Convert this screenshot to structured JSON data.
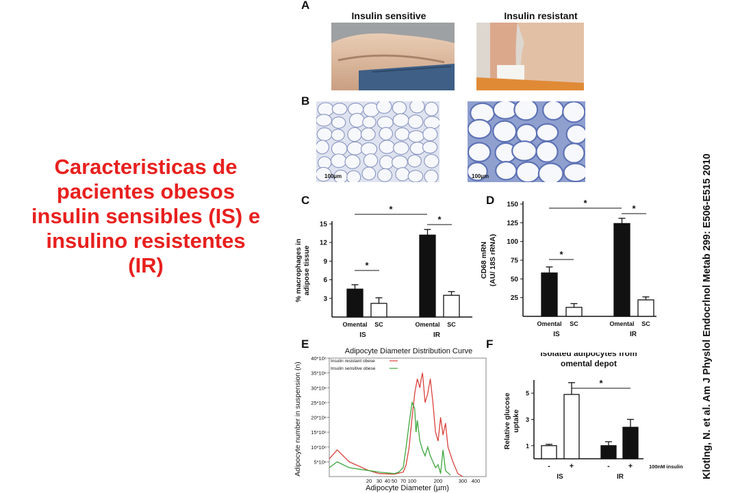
{
  "title_lines": [
    "Caracteristicas de",
    "pacientes obesos",
    "insulin sensibles (IS) e",
    "insulino resistentes",
    "(IR)"
  ],
  "citation": "Klotlng, N. et al. Am J Physlol Endocrlnol Metab 299: E506-E515 2010",
  "panel_a": {
    "letter": "A",
    "labels": [
      "Insulin sensitive",
      "Insulin resistant"
    ]
  },
  "panel_b": {
    "letter": "B",
    "scale_bar": "100µm"
  },
  "panel_c": {
    "letter": "C"
  },
  "panel_d": {
    "letter": "D"
  },
  "panel_e": {
    "letter": "E"
  },
  "panel_f": {
    "letter": "F"
  },
  "chart_data": [
    {
      "panel": "C",
      "type": "bar",
      "ylabel_lines": [
        "% macrophages in",
        "adipose tissue"
      ],
      "ylim": [
        0,
        15
      ],
      "yticks": [
        3,
        6,
        9,
        12,
        15
      ],
      "categories": [
        "Omental",
        "SC",
        "Omental",
        "SC"
      ],
      "groups": [
        "IS",
        "IR"
      ],
      "fills": [
        "#111111",
        "#ffffff",
        "#111111",
        "#ffffff"
      ],
      "values": [
        4.5,
        2.2,
        13.2,
        3.5
      ],
      "errors": [
        0.7,
        0.9,
        0.9,
        0.6
      ],
      "significance": [
        "*",
        "*",
        "*"
      ]
    },
    {
      "panel": "D",
      "type": "bar",
      "ylabel_lines": [
        "CD68 mRN",
        "(AU/ 18S rRNA)"
      ],
      "ylim": [
        0,
        150
      ],
      "yticks": [
        25,
        50,
        75,
        100,
        125,
        150
      ],
      "categories": [
        "Omental",
        "SC",
        "Omental",
        "SC"
      ],
      "groups": [
        "IS",
        "IR"
      ],
      "fills": [
        "#111111",
        "#ffffff",
        "#111111",
        "#ffffff"
      ],
      "values": [
        58,
        12,
        124,
        22
      ],
      "errors": [
        8,
        5,
        7,
        4
      ],
      "significance": [
        "*",
        "*",
        "*"
      ]
    },
    {
      "panel": "E",
      "type": "line",
      "title": "Adipocyte Diameter Distribution Curve",
      "xlabel": "Adipocyte Diameter (µm)",
      "ylabel": "Adipocyte number in suspension (n)",
      "xticks": [
        "20",
        "30",
        "40",
        "50",
        "70",
        "100",
        "200",
        "300",
        "400"
      ],
      "yticks": [
        "5*10⁶",
        "10*10⁶",
        "15*10⁶",
        "20*10⁶",
        "25*10⁶",
        "30*10⁶",
        "35*10⁶",
        "40*10⁶"
      ],
      "ylim": [
        0,
        40
      ],
      "series": [
        {
          "name": "Insulin resistant obese",
          "color": "#d9413b",
          "points": [
            [
              10,
              6
            ],
            [
              12,
              9
            ],
            [
              15,
              5
            ],
            [
              20,
              2
            ],
            [
              30,
              1
            ],
            [
              50,
              0.8
            ],
            [
              70,
              1.5
            ],
            [
              80,
              4
            ],
            [
              90,
              10
            ],
            [
              100,
              20
            ],
            [
              110,
              28
            ],
            [
              120,
              33
            ],
            [
              130,
              30
            ],
            [
              135,
              33
            ],
            [
              140,
              35
            ],
            [
              150,
              25
            ],
            [
              160,
              28
            ],
            [
              170,
              33
            ],
            [
              180,
              25
            ],
            [
              190,
              15
            ],
            [
              200,
              12
            ],
            [
              210,
              20
            ],
            [
              220,
              14
            ],
            [
              230,
              18
            ],
            [
              240,
              10
            ],
            [
              260,
              5
            ],
            [
              280,
              1
            ],
            [
              300,
              0
            ]
          ]
        },
        {
          "name": "Insulin sensitive obese",
          "color": "#3ca63c",
          "points": [
            [
              10,
              3
            ],
            [
              12,
              5
            ],
            [
              15,
              3
            ],
            [
              20,
              2
            ],
            [
              30,
              1.5
            ],
            [
              50,
              1
            ],
            [
              60,
              1.5
            ],
            [
              70,
              3
            ],
            [
              80,
              10
            ],
            [
              90,
              18
            ],
            [
              100,
              25
            ],
            [
              110,
              23
            ],
            [
              115,
              15
            ],
            [
              120,
              19
            ],
            [
              130,
              12
            ],
            [
              140,
              9
            ],
            [
              150,
              7
            ],
            [
              160,
              10
            ],
            [
              170,
              7
            ],
            [
              180,
              5
            ],
            [
              190,
              3
            ],
            [
              200,
              4
            ],
            [
              210,
              1
            ],
            [
              220,
              9
            ],
            [
              230,
              2
            ],
            [
              250,
              0.5
            ]
          ]
        }
      ]
    },
    {
      "panel": "F",
      "type": "bar",
      "title_lines": [
        "Isolated adipocytes from",
        "omental depot"
      ],
      "ylabel_lines": [
        "Relative glucose",
        "uptake"
      ],
      "ylim": [
        0,
        6
      ],
      "yticks": [
        1,
        3,
        5
      ],
      "categories": [
        "-",
        "+",
        "-",
        "+"
      ],
      "groups": [
        "IS",
        "IR"
      ],
      "fills": [
        "#ffffff",
        "#ffffff",
        "#111111",
        "#111111"
      ],
      "values": [
        1.0,
        4.9,
        1.0,
        2.4
      ],
      "errors": [
        0.1,
        0.9,
        0.3,
        0.6
      ],
      "treatment_label": "100nM insulin",
      "significance": [
        "*"
      ]
    }
  ]
}
